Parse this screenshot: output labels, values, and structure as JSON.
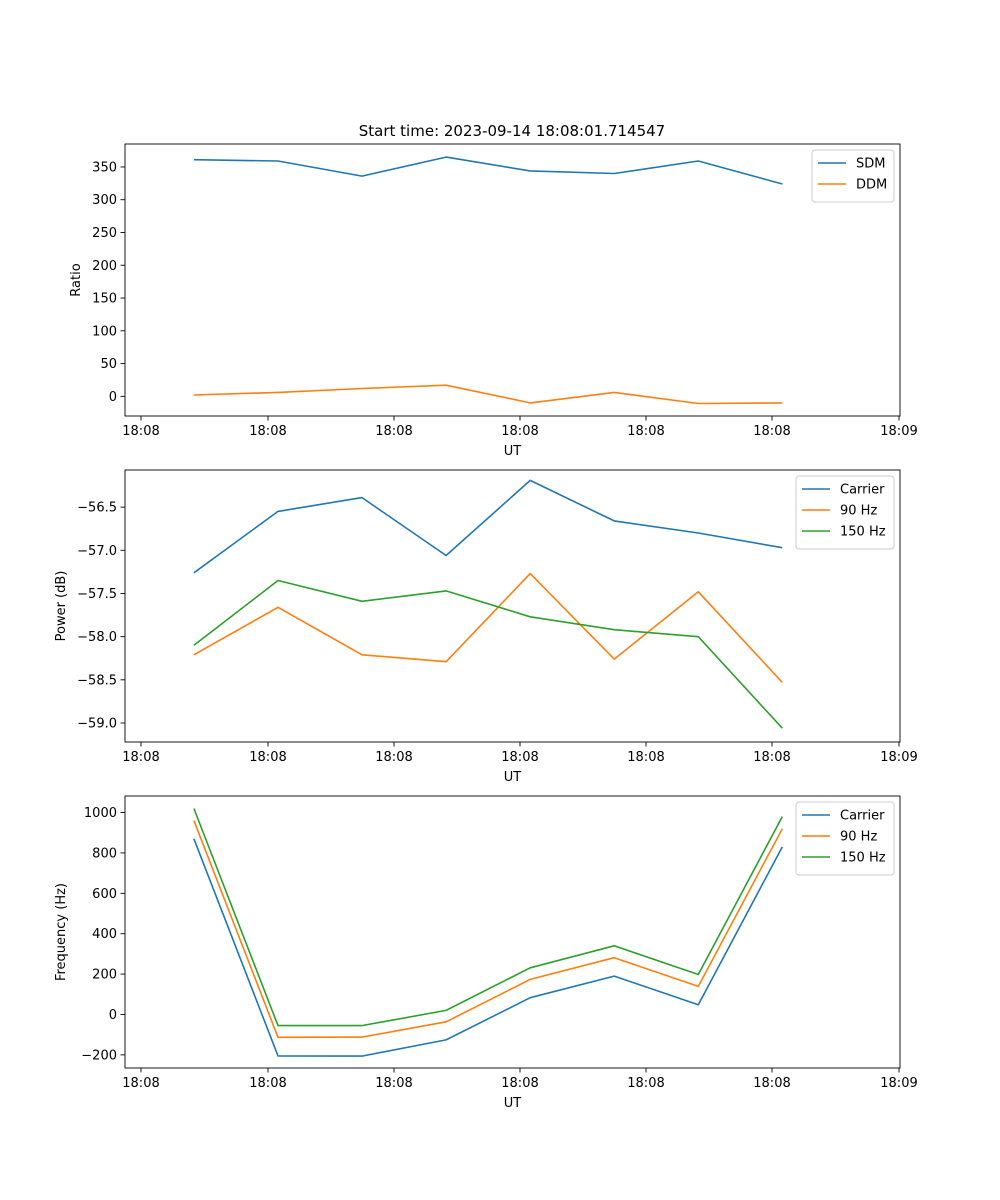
{
  "figure": {
    "title": "Start time: 2023-09-14 18:08:01.714547"
  },
  "colors": {
    "blue": "#1f77b4",
    "orange": "#ff7f0e",
    "green": "#2ca02c"
  },
  "chart_data": [
    {
      "type": "line",
      "title": "Start time: 2023-09-14 18:08:01.714547",
      "xlabel": "UT",
      "ylabel": "Ratio",
      "x_tick_labels": [
        "18:08",
        "18:08",
        "18:08",
        "18:08",
        "18:08",
        "18:08",
        "18:09"
      ],
      "x": [
        1,
        2,
        3,
        4,
        5,
        6,
        7,
        8
      ],
      "xlim": [
        0.18,
        9.4
      ],
      "ylim": [
        -30,
        385
      ],
      "yticks": [
        0,
        50,
        100,
        150,
        200,
        250,
        300,
        350
      ],
      "legend": "top-right",
      "series": [
        {
          "name": "SDM",
          "color": "#1f77b4",
          "values": [
            361,
            359,
            336,
            365,
            344,
            340,
            359,
            324
          ]
        },
        {
          "name": "DDM",
          "color": "#ff7f0e",
          "values": [
            2,
            6,
            12,
            17,
            -10,
            6,
            -11,
            -10
          ]
        }
      ]
    },
    {
      "type": "line",
      "title": "",
      "xlabel": "UT",
      "ylabel": "Power (dB)",
      "x_tick_labels": [
        "18:08",
        "18:08",
        "18:08",
        "18:08",
        "18:08",
        "18:08",
        "18:09"
      ],
      "x": [
        1,
        2,
        3,
        4,
        5,
        6,
        7,
        8
      ],
      "xlim": [
        0.18,
        9.4
      ],
      "ylim": [
        -59.22,
        -56.07
      ],
      "yticks": [
        -59.0,
        -58.5,
        -58.0,
        -57.5,
        -57.0,
        -56.5
      ],
      "ytick_labels": [
        "−59.0",
        "−58.5",
        "−58.0",
        "−57.5",
        "−57.0",
        "−56.5"
      ],
      "legend": "top-right",
      "series": [
        {
          "name": "Carrier",
          "color": "#1f77b4",
          "values": [
            -57.26,
            -56.55,
            -56.39,
            -57.06,
            -56.19,
            -56.66,
            -56.8,
            -56.97
          ]
        },
        {
          "name": "90 Hz",
          "color": "#ff7f0e",
          "values": [
            -58.21,
            -57.66,
            -58.21,
            -58.29,
            -57.27,
            -58.26,
            -57.48,
            -58.53
          ]
        },
        {
          "name": "150 Hz",
          "color": "#2ca02c",
          "values": [
            -58.1,
            -57.35,
            -57.59,
            -57.47,
            -57.77,
            -57.92,
            -58.0,
            -59.06
          ]
        }
      ]
    },
    {
      "type": "line",
      "title": "",
      "xlabel": "UT",
      "ylabel": "Frequency (Hz)",
      "x_tick_labels": [
        "18:08",
        "18:08",
        "18:08",
        "18:08",
        "18:08",
        "18:08",
        "18:09"
      ],
      "x": [
        1,
        2,
        3,
        4,
        5,
        6,
        7,
        8
      ],
      "xlim": [
        0.18,
        9.4
      ],
      "ylim": [
        -265,
        1082
      ],
      "yticks": [
        -200,
        0,
        200,
        400,
        600,
        800,
        1000
      ],
      "ytick_labels": [
        "−200",
        "0",
        "200",
        "400",
        "600",
        "800",
        "1000"
      ],
      "legend": "top-right",
      "series": [
        {
          "name": "Carrier",
          "color": "#1f77b4",
          "values": [
            870,
            -205,
            -206,
            -126,
            83,
            190,
            48,
            830
          ]
        },
        {
          "name": "90 Hz",
          "color": "#ff7f0e",
          "values": [
            960,
            -113,
            -112,
            -36,
            174,
            281,
            139,
            920
          ]
        },
        {
          "name": "150 Hz",
          "color": "#2ca02c",
          "values": [
            1020,
            -55,
            -55,
            20,
            231,
            340,
            198,
            980
          ]
        }
      ]
    }
  ]
}
